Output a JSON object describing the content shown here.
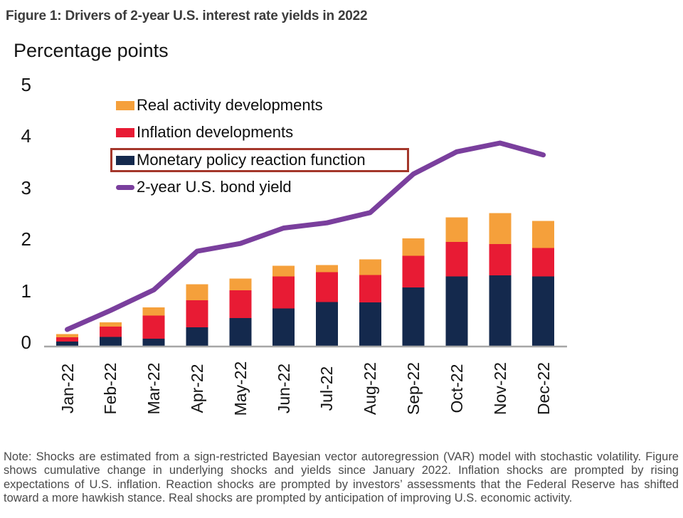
{
  "figure": {
    "title": "Figure 1: Drivers of 2-year U.S. interest rate yields in 2022",
    "note": "Note: Shocks are estimated from a sign-restricted Bayesian vector autoregression (VAR) model with stochastic volatility. Figure shows cumulative change in underlying shocks and yields since January 2022. Inflation shocks are prompted by rising expectations of U.S. inflation. Reaction shocks are prompted by investors’ assessments that the Federal Reserve has shifted toward a more hawkish stance. Real shocks are prompted by anticipation of improving U.S. economic activity."
  },
  "chart_data": {
    "type": "bar",
    "subtype": "stacked-bar-with-line",
    "title": "Figure 1: Drivers of 2-year U.S. interest rate yields in 2022",
    "xlabel": "",
    "ylabel": "Percentage points",
    "ylim": [
      0,
      5
    ],
    "yticks": [
      0,
      1,
      2,
      3,
      4,
      5
    ],
    "grid": false,
    "legend_position": "top-left-inside",
    "categories": [
      "Jan-22",
      "Feb-22",
      "Mar-22",
      "Apr-22",
      "May-22",
      "Jun-22",
      "Jul-22",
      "Aug-22",
      "Sep-22",
      "Oct-22",
      "Nov-22",
      "Dec-22"
    ],
    "series": [
      {
        "name": "Monetary policy reaction function",
        "type": "bar",
        "color": "#14294d",
        "values": [
          0.1,
          0.19,
          0.15,
          0.37,
          0.55,
          0.74,
          0.86,
          0.86,
          1.15,
          1.36,
          1.38,
          1.36
        ]
      },
      {
        "name": "Inflation developments",
        "type": "bar",
        "color": "#e81b34",
        "values": [
          0.08,
          0.2,
          0.45,
          0.53,
          0.54,
          0.62,
          0.58,
          0.53,
          0.61,
          0.67,
          0.61,
          0.55
        ]
      },
      {
        "name": "Real activity developments",
        "type": "bar",
        "color": "#f5a03b",
        "values": [
          0.06,
          0.08,
          0.16,
          0.31,
          0.23,
          0.21,
          0.14,
          0.3,
          0.34,
          0.48,
          0.6,
          0.53
        ]
      },
      {
        "name": "2-year U.S. bond yield",
        "type": "line",
        "color": "#7a3f9d",
        "values": [
          0.33,
          0.7,
          1.1,
          1.85,
          2.0,
          2.3,
          2.4,
          2.6,
          3.35,
          3.78,
          3.95,
          3.72
        ]
      }
    ],
    "legend_highlighted_item": "Monetary policy reaction function"
  },
  "colors": {
    "axis_line": "#a6a6a6",
    "legend_highlight_border": "#a4372b",
    "title_text": "#3c3c3c",
    "note_text": "#4b4b4b"
  }
}
